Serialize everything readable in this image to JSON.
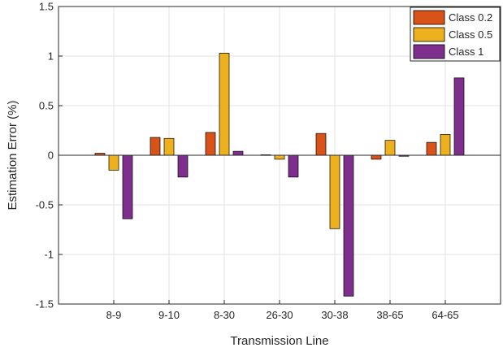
{
  "chart_data": {
    "type": "bar",
    "title": "",
    "xlabel": "Transmission Line",
    "ylabel": "Estimation Error (%)",
    "categories": [
      "8-9",
      "9-10",
      "8-30",
      "26-30",
      "30-38",
      "38-65",
      "64-65"
    ],
    "ylim": [
      -1.5,
      1.5
    ],
    "yticks": [
      -1.5,
      -1,
      -0.5,
      0,
      0.5,
      1,
      1.5
    ],
    "ytick_labels": [
      "-1.5",
      "-1",
      "-0.5",
      "0",
      "0.5",
      "1",
      "1.5"
    ],
    "grid": true,
    "legend_position": "top-right",
    "series": [
      {
        "name": "Class 0.2",
        "color": "#D95319",
        "values": [
          0.02,
          0.18,
          0.23,
          0.005,
          0.22,
          -0.04,
          0.13
        ]
      },
      {
        "name": "Class 0.5",
        "color": "#EDB120",
        "values": [
          -0.15,
          0.17,
          1.03,
          -0.04,
          -0.74,
          0.15,
          0.21
        ]
      },
      {
        "name": "Class 1",
        "color": "#7E2F8E",
        "values": [
          -0.64,
          -0.22,
          0.04,
          -0.22,
          -1.42,
          -0.01,
          0.78
        ]
      }
    ]
  }
}
